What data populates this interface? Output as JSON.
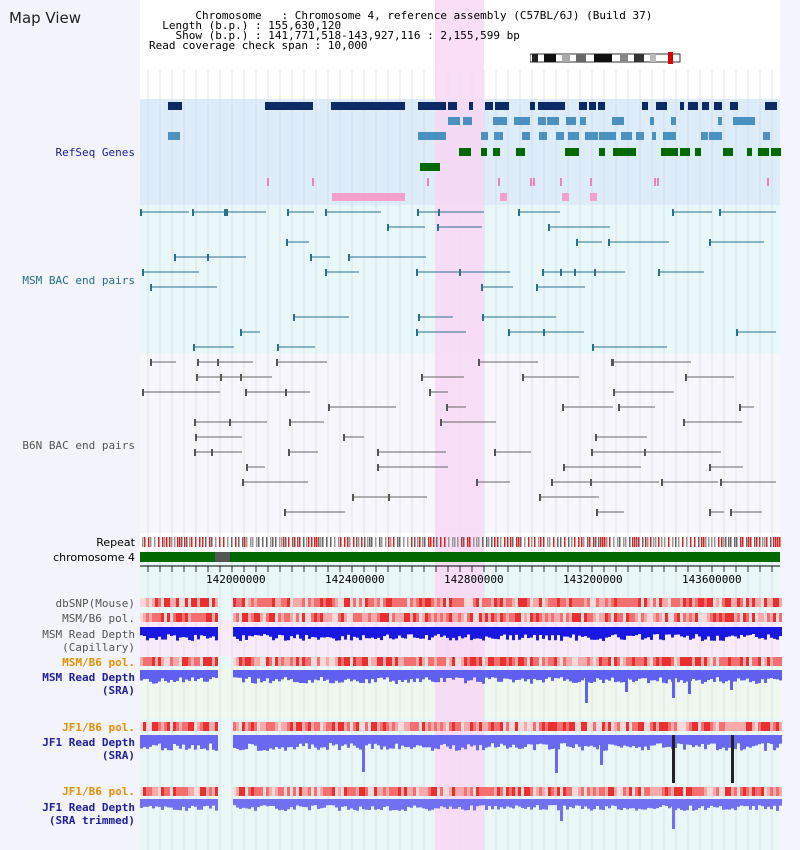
{
  "header": {
    "title": "Map View",
    "chromosome_label": "Chromosome",
    "chromosome_value": ": Chromosome 4, reference assembly (C57BL/6J) (Build 37)",
    "length_label": "Length (b.p.)",
    "length_value": ": 155,630,120",
    "show_label": "Show (b.p.)",
    "show_value": ": 141,771,518-143,927,116 : 2,155,599 bp",
    "coverage_label": "Read coverage check span",
    "coverage_value": ": 10,000"
  },
  "tracks": {
    "refseq": "RefSeq Genes",
    "msm_bac": "MSM BAC end pairs",
    "b6n_bac": "B6N BAC end pairs",
    "repeat": "Repeat",
    "chromosome": "chromosome 4",
    "dbsnp": "dbSNP(Mouse)",
    "msm_b6_pol_1": "MSM/B6 pol.",
    "msm_read_depth_cap_1": "MSM Read Depth",
    "msm_read_depth_cap_2": "(Capillary)",
    "msm_b6_pol_2": "MSM/B6 pol.",
    "msm_read_depth_sra_1": "MSM Read Depth",
    "msm_read_depth_sra_2": "(SRA)",
    "jf1_b6_pol_1": "JF1/B6 pol.",
    "jf1_read_depth_sra_1": "JF1 Read Depth",
    "jf1_read_depth_sra_2": "(SRA)",
    "jf1_b6_pol_2": "JF1/B6 pol.",
    "jf1_read_depth_trim_1": "JF1 Read Depth",
    "jf1_read_depth_trim_2": "(SRA trimmed)"
  },
  "ruler": {
    "ticks": [
      "142000000",
      "142400000",
      "142800000",
      "143200000",
      "143600000"
    ]
  },
  "colors": {
    "refseq_label": "#1a1aa8",
    "msm_label": "#1f6f8f",
    "b6n_label": "#555555",
    "orange_label": "#e89000",
    "blue_label": "#2020a0",
    "highlight": "#f8d8f4",
    "gene_dark": "#0b2a66",
    "gene_mid": "#4a90c0",
    "gene_green": "#006a00",
    "depth_blue": "#1a1ae6"
  }
}
